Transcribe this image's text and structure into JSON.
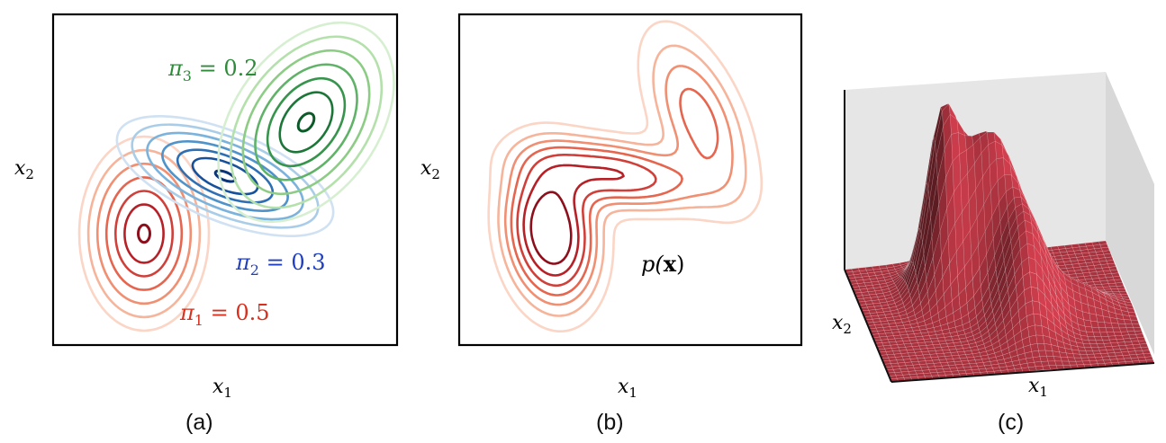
{
  "panel_a": {
    "caption": "(a)",
    "xlabel": "x",
    "xlabel_sub": "1",
    "ylabel": "x",
    "ylabel_sub": "2",
    "components": [
      {
        "symbol": "π",
        "sub": "1",
        "eq": " = 0.5",
        "color": "#d7301f",
        "palette": "reds"
      },
      {
        "symbol": "π",
        "sub": "2",
        "eq": " = 0.3",
        "color": "#1f3fbf",
        "palette": "blues"
      },
      {
        "symbol": "π",
        "sub": "3",
        "eq": " = 0.2",
        "color": "#2e8b3a",
        "palette": "greens"
      }
    ]
  },
  "panel_b": {
    "caption": "(b)",
    "xlabel": "x",
    "xlabel_sub": "1",
    "ylabel": "x",
    "ylabel_sub": "2",
    "density_label_pre": "p(",
    "density_label_bold": "x",
    "density_label_post": ")"
  },
  "panel_c": {
    "caption": "(c)",
    "xlabel": "x",
    "xlabel_sub": "1",
    "ylabel": "x",
    "ylabel_sub": "2",
    "surface_color": "#a8323e"
  },
  "colors": {
    "reds": [
      "#fbd5c5",
      "#f6b49b",
      "#f08f72",
      "#e5654f",
      "#d0403a",
      "#b62027",
      "#8e0f1c"
    ],
    "blues": [
      "#cfe1f2",
      "#a9cde8",
      "#7cb3dc",
      "#4f93ca",
      "#2e6fb3",
      "#17519c",
      "#0a3578"
    ],
    "greens": [
      "#d7efd1",
      "#b4e0ab",
      "#8ccc85",
      "#5fb267",
      "#37944c",
      "#1c7638",
      "#0b5a27"
    ]
  }
}
